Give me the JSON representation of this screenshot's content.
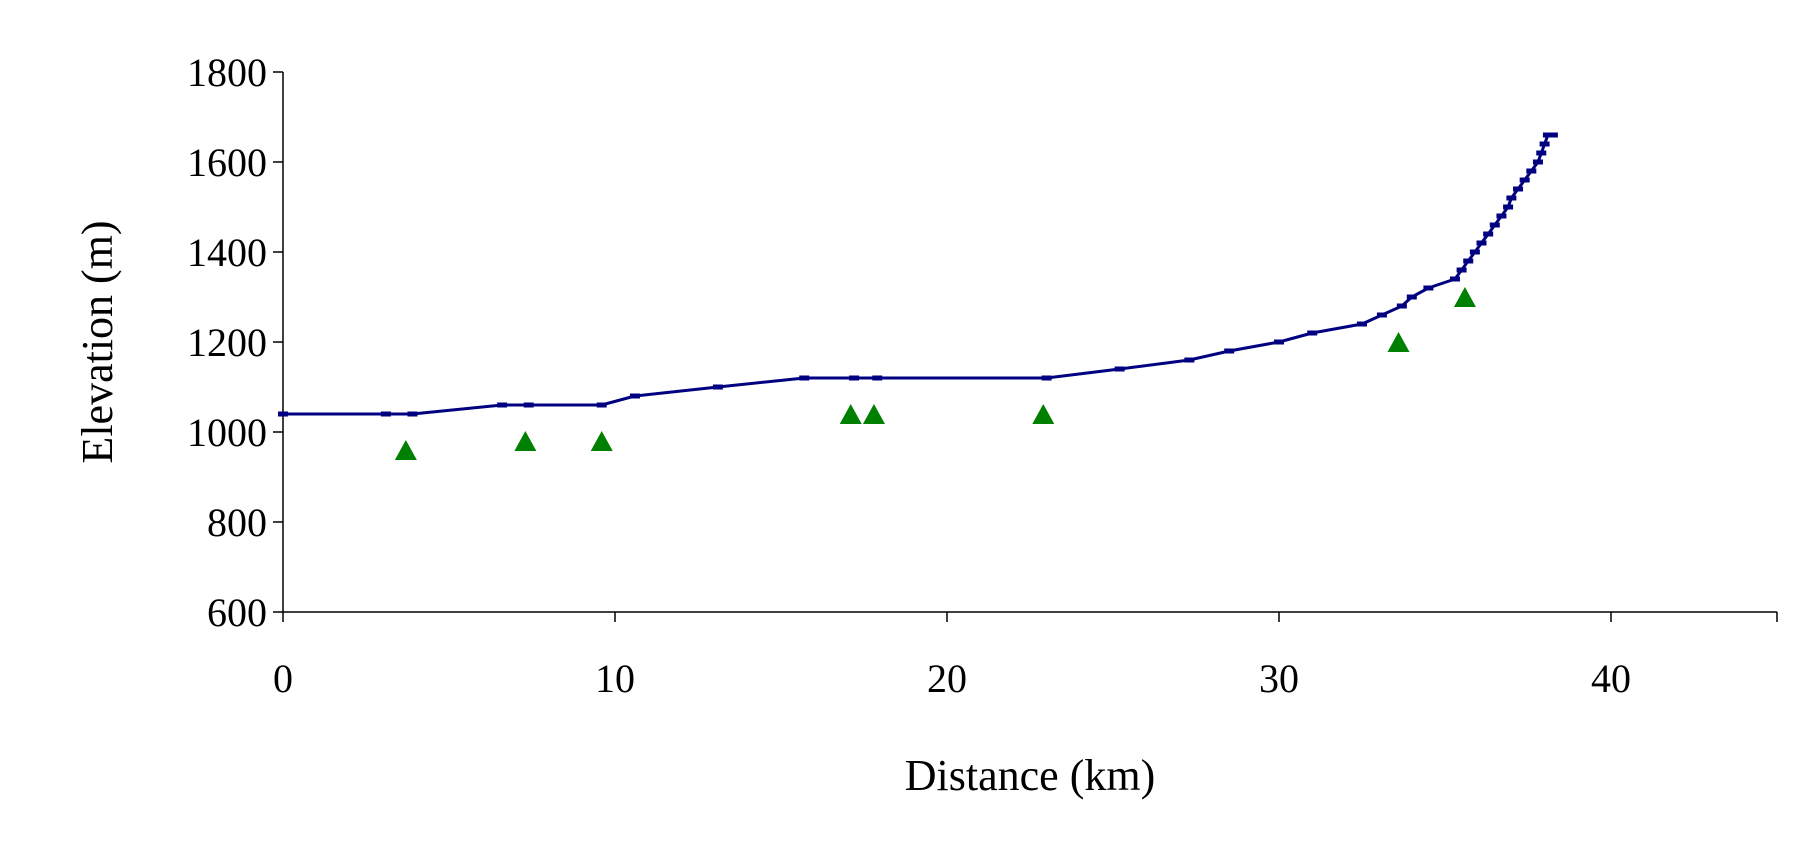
{
  "chart_data": {
    "type": "line",
    "title": "",
    "xlabel": "Distance (km)",
    "ylabel": "Elevation (m)",
    "xlim": [
      0,
      45
    ],
    "ylim": [
      600,
      1800
    ],
    "xticks": [
      0,
      10,
      20,
      30,
      40
    ],
    "yticks": [
      600,
      800,
      1000,
      1200,
      1400,
      1600,
      1800
    ],
    "grid": false,
    "legend": "none",
    "series": [
      {
        "type": "line",
        "color": "#000080",
        "marker": "dash",
        "x": [
          0,
          3.1,
          3.9,
          6.6,
          7.4,
          9.6,
          10.6,
          13.1,
          15.7,
          17.2,
          17.9,
          23.0,
          25.2,
          27.3,
          28.5,
          30.0,
          31.0,
          32.5,
          33.1,
          33.7,
          34.0,
          34.5,
          35.3,
          35.5,
          35.7,
          35.9,
          36.1,
          36.3,
          36.5,
          36.7,
          36.9,
          37.0,
          37.2,
          37.4,
          37.6,
          37.8,
          37.9,
          38.0,
          38.1,
          38.25
        ],
        "y": [
          1040,
          1040,
          1040,
          1060,
          1060,
          1060,
          1080,
          1100,
          1120,
          1120,
          1120,
          1120,
          1140,
          1160,
          1180,
          1200,
          1220,
          1240,
          1260,
          1280,
          1300,
          1320,
          1340,
          1360,
          1380,
          1400,
          1420,
          1440,
          1460,
          1480,
          1500,
          1520,
          1540,
          1560,
          1580,
          1600,
          1620,
          1640,
          1660,
          1660
        ]
      },
      {
        "type": "scatter",
        "color": "#008000",
        "marker": "triangle",
        "x": [
          3.7,
          7.3,
          9.6,
          17.1,
          17.8,
          22.9,
          33.6,
          35.6
        ],
        "y": [
          960,
          980,
          980,
          1040,
          1040,
          1040,
          1200,
          1300
        ]
      }
    ]
  }
}
